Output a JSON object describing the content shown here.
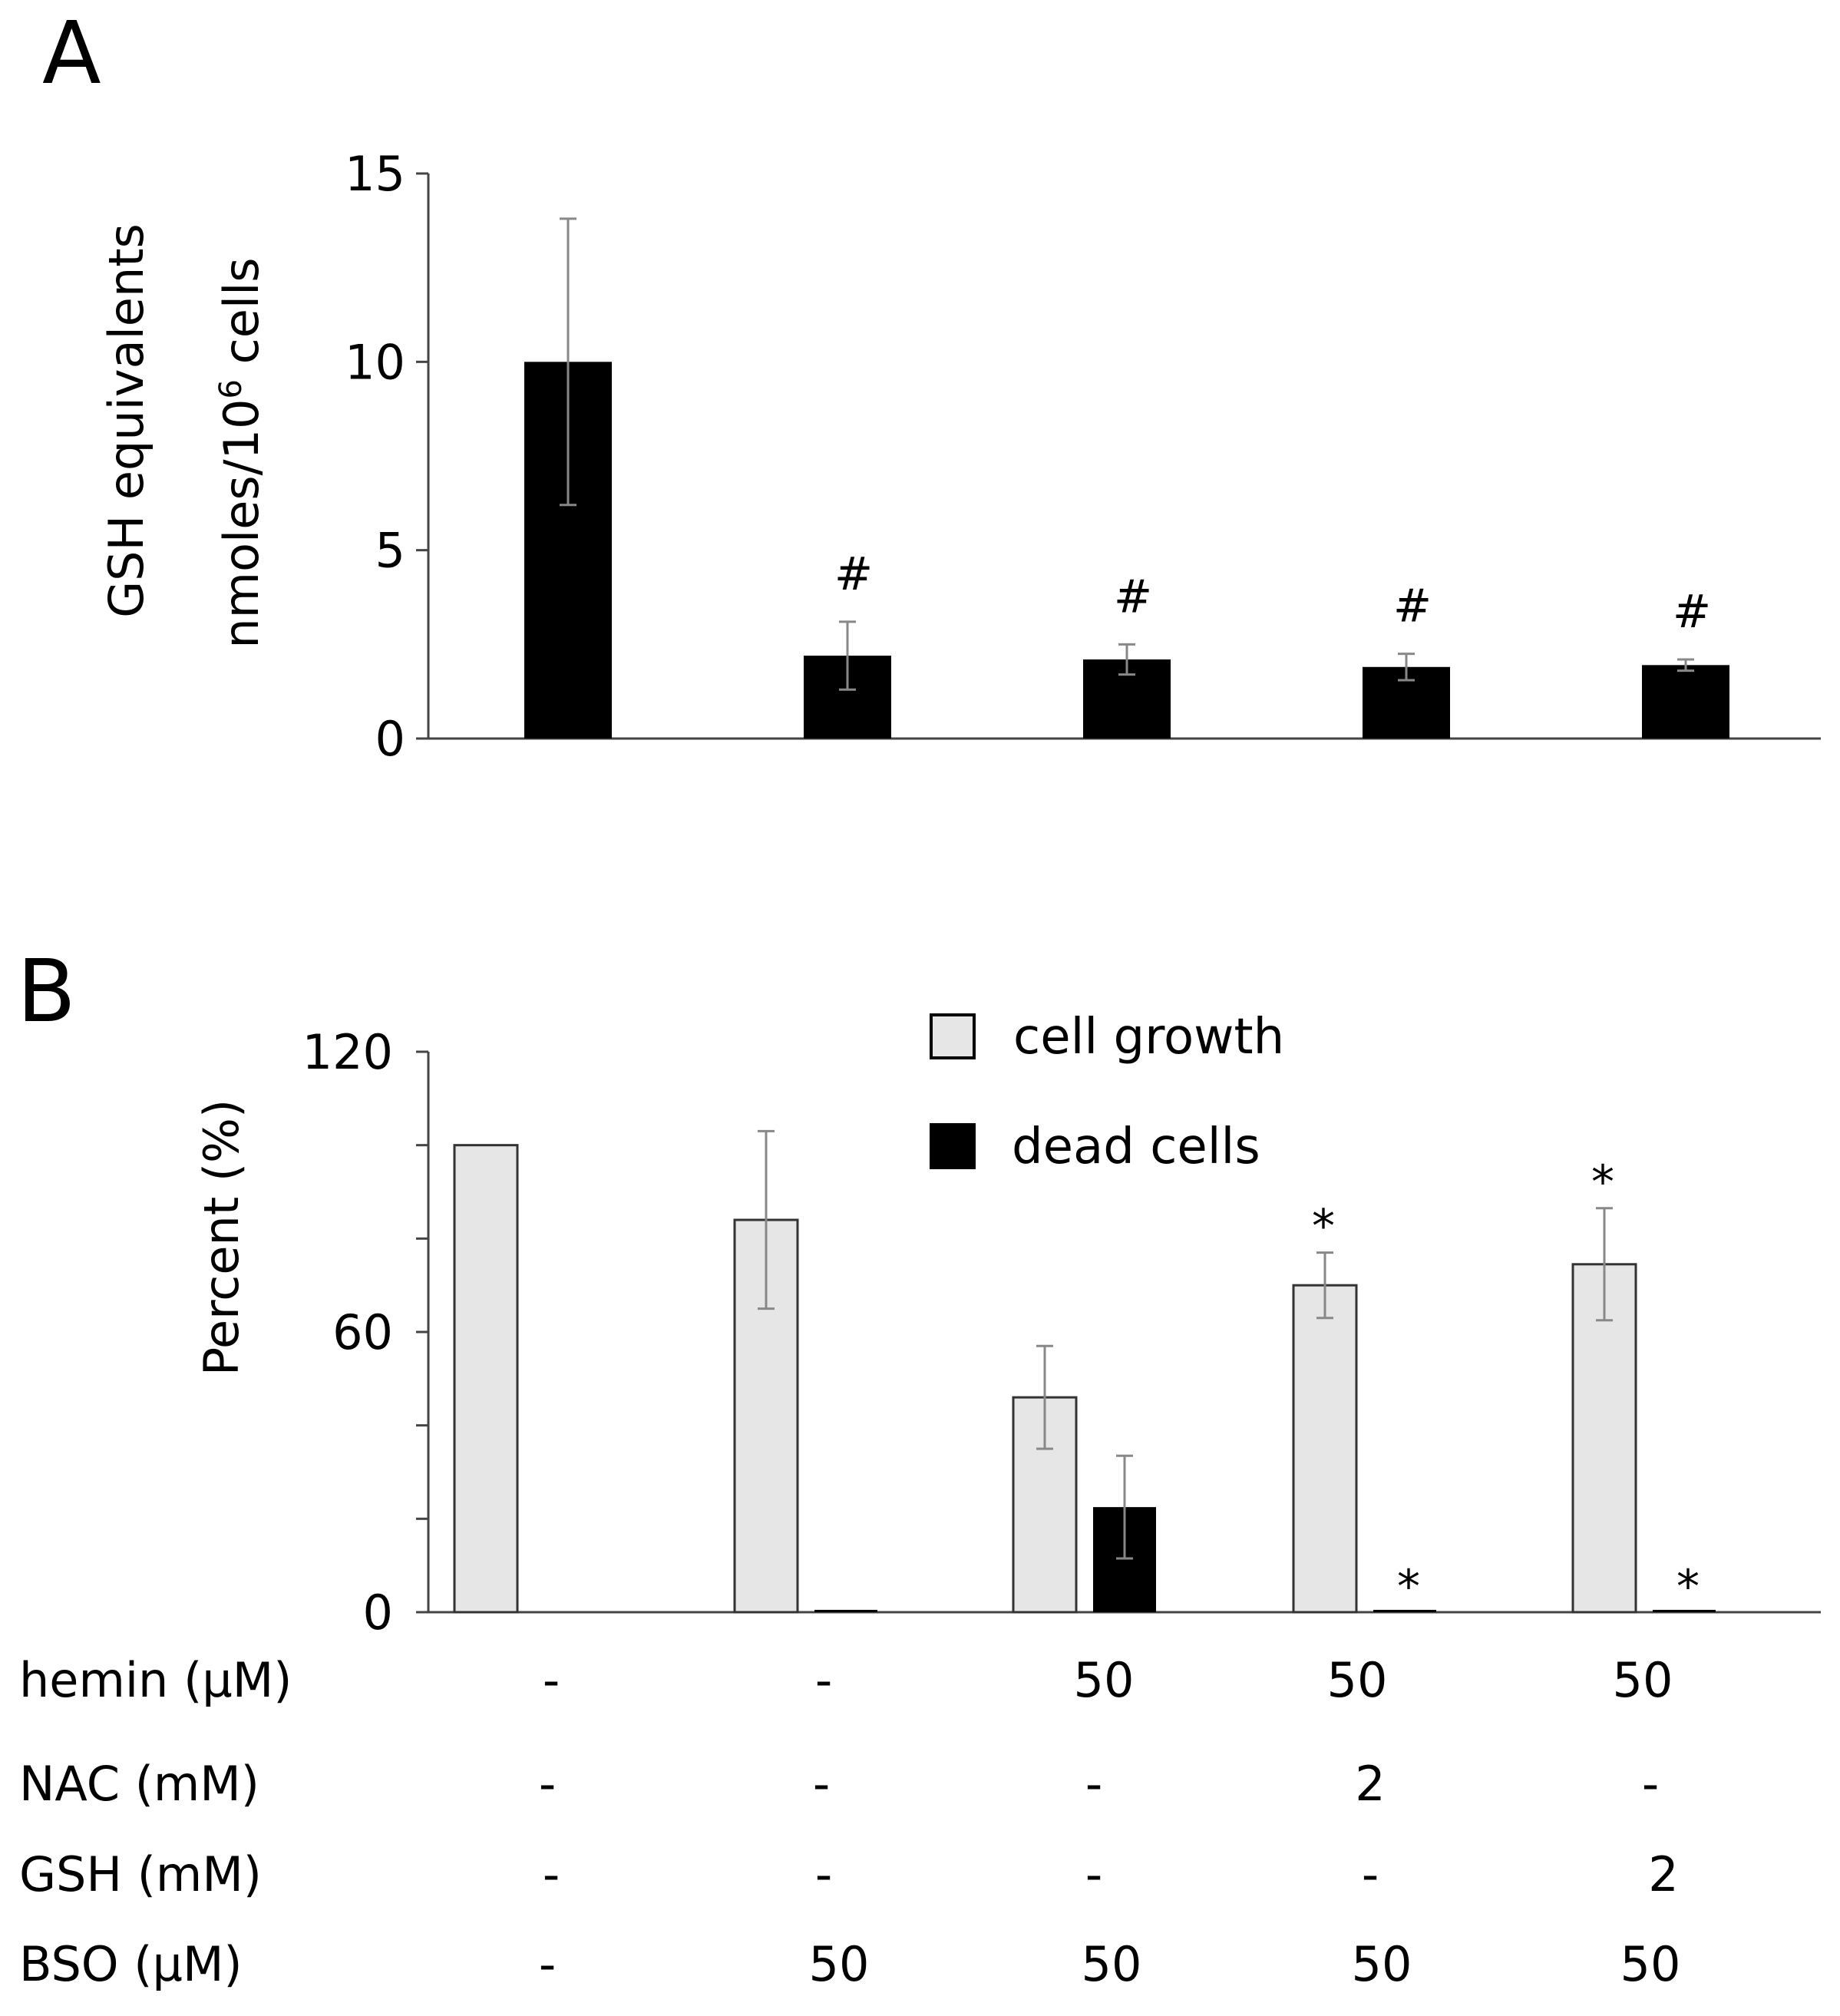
{
  "chart_data": [
    {
      "panel": "A",
      "type": "bar",
      "ylabel_line1": "GSH equivalents",
      "ylabel_line2": "nmoles/10",
      "ylabel_sup": "6",
      "ylabel_line2_tail": " cells",
      "ylim": [
        0,
        15
      ],
      "yticks": [
        "0",
        "5",
        "10",
        "15"
      ],
      "series": [
        {
          "name": "GSH equivalents",
          "color": "#000000",
          "values": [
            10.0,
            2.2,
            2.1,
            1.9,
            1.95
          ],
          "errors": [
            3.8,
            0.9,
            0.4,
            0.35,
            0.15
          ]
        }
      ],
      "annotations": [
        "",
        "#",
        "#",
        "#",
        "#"
      ]
    },
    {
      "panel": "B",
      "type": "bar",
      "ylabel": "Percent (%)",
      "ylim": [
        0,
        120
      ],
      "yticks": [
        "0",
        "60",
        "120"
      ],
      "legend": {
        "position": "top-center",
        "entries": [
          {
            "label": "cell growth",
            "color": "#e6e6e6"
          },
          {
            "label": "dead cells",
            "color": "#000000"
          }
        ]
      },
      "series": [
        {
          "name": "cell growth",
          "color": "#e6e6e6",
          "values": [
            100,
            84,
            46,
            70,
            74.5
          ],
          "errors": [
            0,
            19,
            11,
            7,
            12
          ],
          "annotations": [
            "",
            "",
            "",
            "*",
            "*"
          ]
        },
        {
          "name": "dead cells",
          "color": "#000000",
          "values": [
            0,
            0.5,
            22.5,
            0.5,
            0.5
          ],
          "errors": [
            0,
            0,
            11,
            0,
            0
          ],
          "annotations": [
            "",
            "",
            "",
            "*",
            "*"
          ]
        }
      ],
      "conditions": [
        {
          "label": "hemin (µM)",
          "values": [
            "-",
            "-",
            "50",
            "50",
            "50"
          ]
        },
        {
          "label": "NAC (mM)",
          "values": [
            "-",
            "-",
            "-",
            "2",
            "-"
          ]
        },
        {
          "label": "GSH (mM)",
          "values": [
            "-",
            "-",
            "-",
            "-",
            "2"
          ]
        },
        {
          "label": "BSO (µM)",
          "values": [
            "-",
            "50",
            "50",
            "50",
            "50"
          ]
        }
      ]
    }
  ]
}
